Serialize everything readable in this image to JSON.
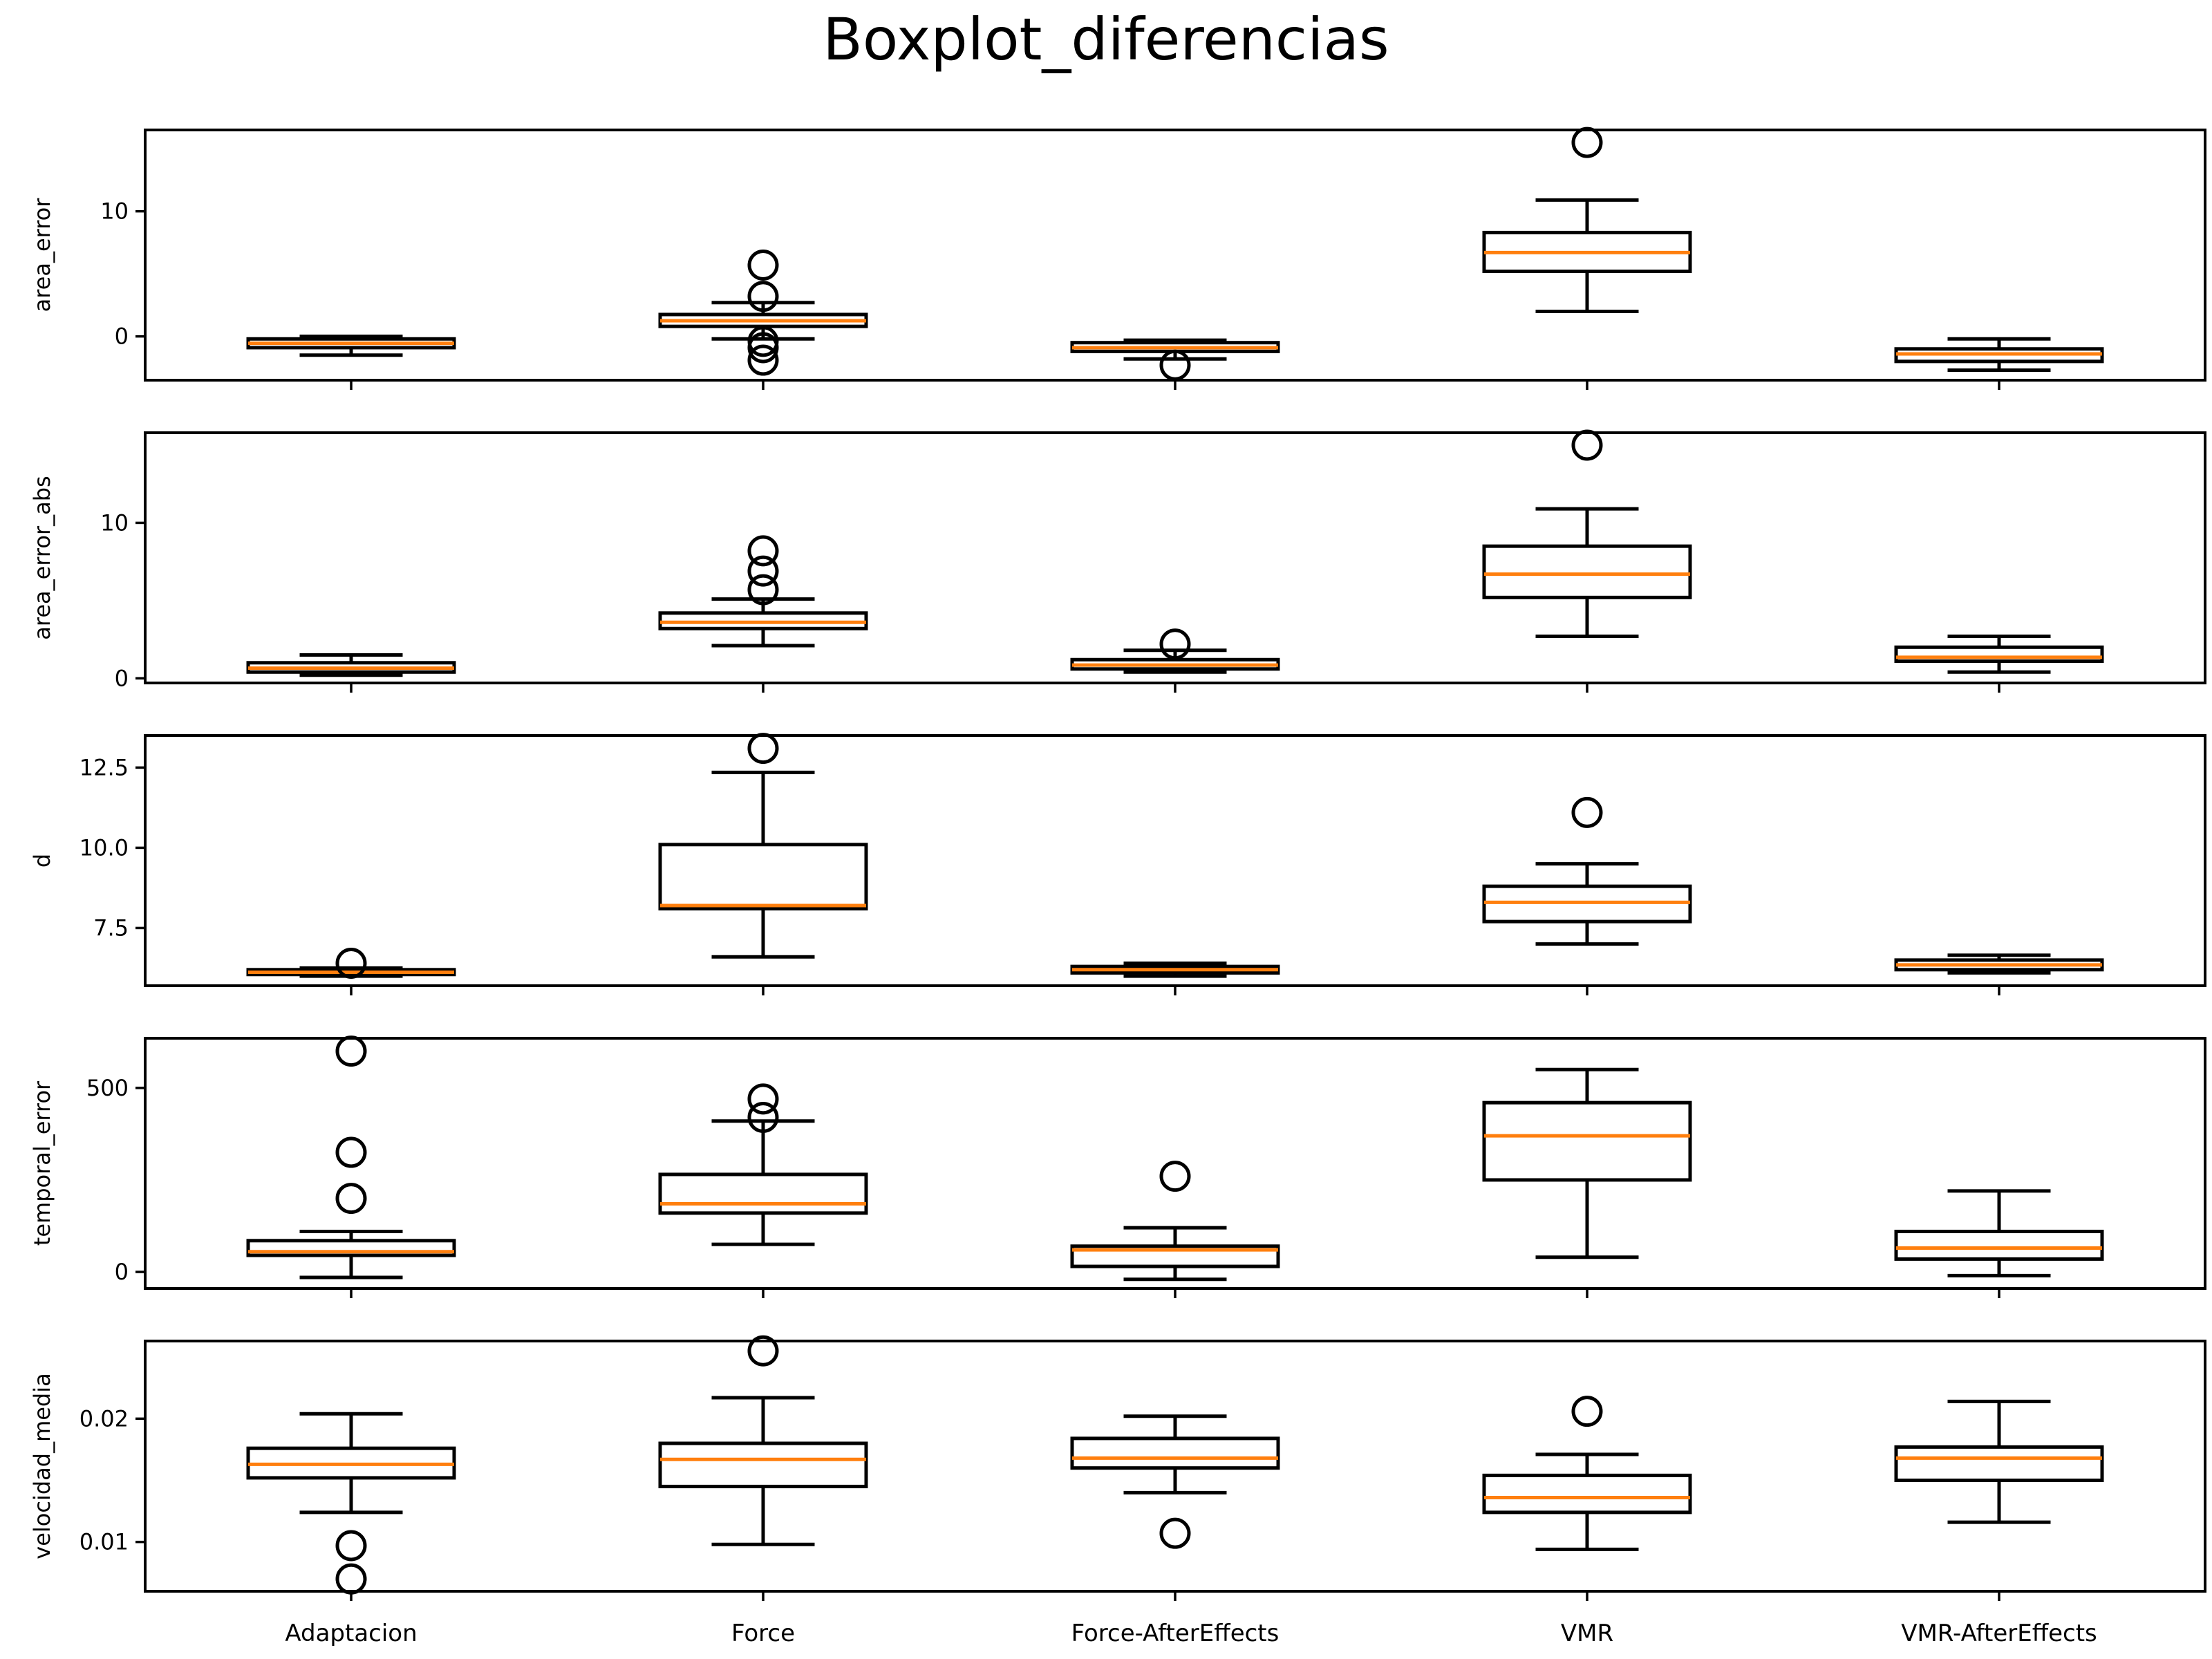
{
  "chart_data": {
    "type": "boxplot",
    "title": "Boxplot_diferencias",
    "categories": [
      "Adaptacion",
      "Force",
      "Force-AfterEffects",
      "VMR",
      "VMR-AfterEffects"
    ],
    "colors": {
      "box": "#000000",
      "median": "#ff7f0e",
      "frame": "#000000"
    },
    "grid": false,
    "panels": [
      {
        "ylabel": "area_error",
        "ylim": [
          -3.5,
          16.5
        ],
        "yticks": [
          0,
          10
        ],
        "ytick_labels": [
          "0",
          "10"
        ],
        "boxes": [
          {
            "q1": -0.9,
            "median": -0.55,
            "q3": -0.2,
            "whislo": -1.5,
            "whishi": 0.0,
            "fliers": []
          },
          {
            "q1": 0.8,
            "median": 1.25,
            "q3": 1.75,
            "whislo": -0.2,
            "whishi": 2.7,
            "fliers": [
              5.7,
              3.2,
              -0.4,
              -0.9,
              -1.9
            ]
          },
          {
            "q1": -1.2,
            "median": -0.9,
            "q3": -0.5,
            "whislo": -1.8,
            "whishi": -0.3,
            "fliers": [
              -2.3
            ]
          },
          {
            "q1": 5.2,
            "median": 6.7,
            "q3": 8.3,
            "whislo": 2.0,
            "whishi": 10.9,
            "fliers": [
              15.5
            ]
          },
          {
            "q1": -2.0,
            "median": -1.4,
            "q3": -1.0,
            "whislo": -2.7,
            "whishi": -0.2,
            "fliers": []
          }
        ]
      },
      {
        "ylabel": "area_error_abs",
        "ylim": [
          -0.3,
          15.8
        ],
        "yticks": [
          0,
          10
        ],
        "ytick_labels": [
          "0",
          "10"
        ],
        "boxes": [
          {
            "q1": 0.4,
            "median": 0.65,
            "q3": 1.0,
            "whislo": 0.2,
            "whishi": 1.5,
            "fliers": []
          },
          {
            "q1": 3.2,
            "median": 3.6,
            "q3": 4.2,
            "whislo": 2.1,
            "whishi": 5.1,
            "fliers": [
              8.2,
              6.9,
              5.7
            ]
          },
          {
            "q1": 0.6,
            "median": 0.85,
            "q3": 1.2,
            "whislo": 0.4,
            "whishi": 1.8,
            "fliers": [
              2.2
            ]
          },
          {
            "q1": 5.2,
            "median": 6.7,
            "q3": 8.5,
            "whislo": 2.7,
            "whishi": 10.9,
            "fliers": [
              15.0
            ]
          },
          {
            "q1": 1.1,
            "median": 1.35,
            "q3": 2.0,
            "whislo": 0.4,
            "whishi": 2.7,
            "fliers": []
          }
        ]
      },
      {
        "ylabel": "d",
        "ylim": [
          5.7,
          13.5
        ],
        "yticks": [
          7.5,
          10.0,
          12.5
        ],
        "ytick_labels": [
          "7.5",
          "10.0",
          "12.5"
        ],
        "boxes": [
          {
            "q1": 6.05,
            "median": 6.12,
            "q3": 6.2,
            "whislo": 6.0,
            "whishi": 6.25,
            "fliers": [
              6.4
            ]
          },
          {
            "q1": 8.1,
            "median": 8.2,
            "q3": 10.1,
            "whislo": 6.6,
            "whishi": 12.35,
            "fliers": [
              13.1
            ]
          },
          {
            "q1": 6.1,
            "median": 6.2,
            "q3": 6.3,
            "whislo": 6.0,
            "whishi": 6.4,
            "fliers": []
          },
          {
            "q1": 7.7,
            "median": 8.3,
            "q3": 8.8,
            "whislo": 7.0,
            "whishi": 9.5,
            "fliers": [
              11.1
            ]
          },
          {
            "q1": 6.2,
            "median": 6.35,
            "q3": 6.5,
            "whislo": 6.1,
            "whishi": 6.65,
            "fliers": []
          }
        ]
      },
      {
        "ylabel": "temporal_error",
        "ylim": [
          -45,
          635
        ],
        "yticks": [
          0,
          500
        ],
        "ytick_labels": [
          "0",
          "500"
        ],
        "boxes": [
          {
            "q1": 45,
            "median": 55,
            "q3": 85,
            "whislo": -15,
            "whishi": 110,
            "fliers": [
              600,
              325,
              200
            ]
          },
          {
            "q1": 160,
            "median": 185,
            "q3": 265,
            "whislo": 75,
            "whishi": 410,
            "fliers": [
              470,
              420
            ]
          },
          {
            "q1": 15,
            "median": 60,
            "q3": 70,
            "whislo": -20,
            "whishi": 120,
            "fliers": [
              260
            ]
          },
          {
            "q1": 250,
            "median": 370,
            "q3": 460,
            "whislo": 40,
            "whishi": 550,
            "fliers": []
          },
          {
            "q1": 35,
            "median": 65,
            "q3": 110,
            "whislo": -10,
            "whishi": 220,
            "fliers": []
          }
        ]
      },
      {
        "ylabel": "velocidad_media",
        "ylim": [
          0.006,
          0.0263
        ],
        "yticks": [
          0.01,
          0.02
        ],
        "ytick_labels": [
          "0.01",
          "0.02"
        ],
        "boxes": [
          {
            "q1": 0.0152,
            "median": 0.0163,
            "q3": 0.0176,
            "whislo": 0.0124,
            "whishi": 0.0204,
            "fliers": [
              0.0097,
              0.007
            ]
          },
          {
            "q1": 0.0145,
            "median": 0.0167,
            "q3": 0.018,
            "whislo": 0.0098,
            "whishi": 0.0217,
            "fliers": [
              0.0255
            ]
          },
          {
            "q1": 0.016,
            "median": 0.0168,
            "q3": 0.0184,
            "whislo": 0.014,
            "whishi": 0.0202,
            "fliers": [
              0.0107
            ]
          },
          {
            "q1": 0.0124,
            "median": 0.0136,
            "q3": 0.0154,
            "whislo": 0.0094,
            "whishi": 0.0171,
            "fliers": [
              0.0206
            ]
          },
          {
            "q1": 0.015,
            "median": 0.0168,
            "q3": 0.0177,
            "whislo": 0.0116,
            "whishi": 0.0214,
            "fliers": []
          }
        ]
      }
    ]
  }
}
